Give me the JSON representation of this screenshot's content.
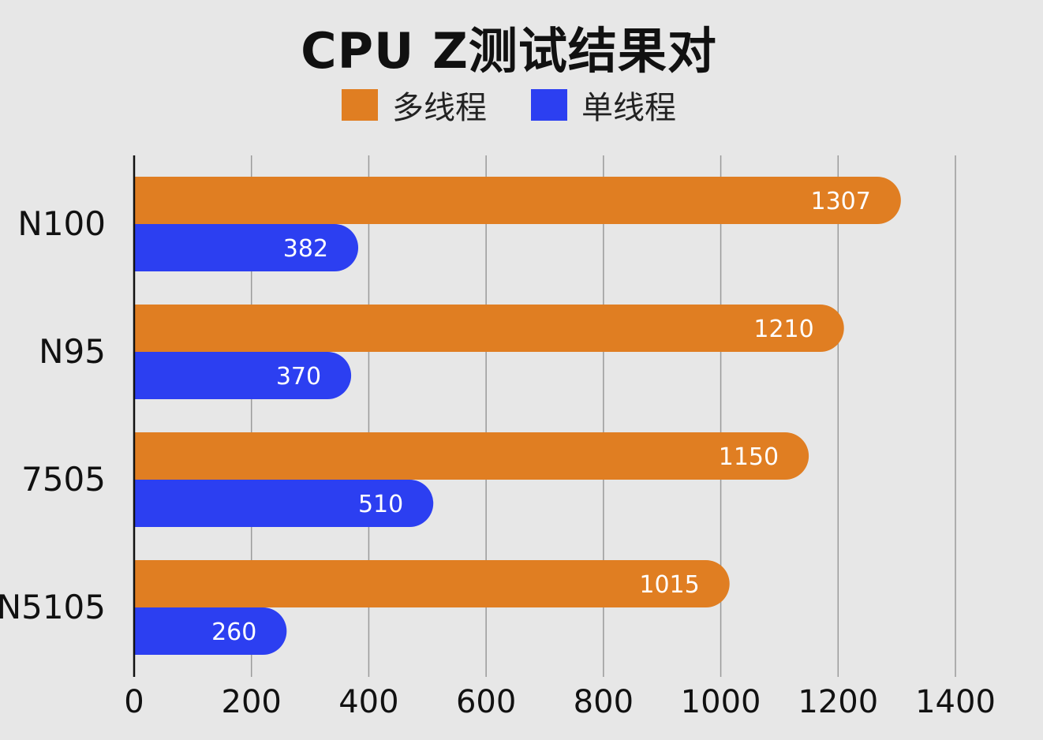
{
  "chart_data": {
    "type": "bar",
    "orientation": "horizontal",
    "title": "CPU Z测试结果对",
    "categories": [
      "N100",
      "N95",
      "7505",
      "N5105"
    ],
    "series": [
      {
        "name": "多线程",
        "color": "#e07e22",
        "values": [
          1307,
          1210,
          1150,
          1015
        ]
      },
      {
        "name": "单线程",
        "color": "#2c3ff1",
        "values": [
          382,
          370,
          510,
          260
        ]
      }
    ],
    "xlim": [
      0,
      1400
    ],
    "xticks": [
      0,
      200,
      400,
      600,
      800,
      1000,
      1200,
      1400
    ],
    "grid": "vertical",
    "legend_position": "top-center"
  }
}
